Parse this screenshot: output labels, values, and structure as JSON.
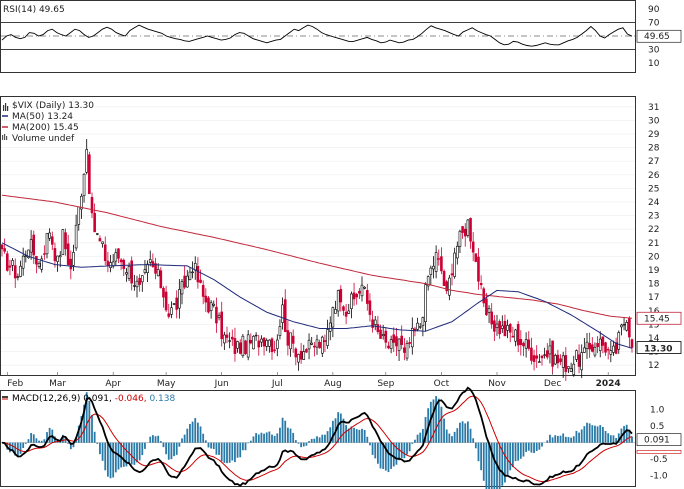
{
  "chart_data": [
    {
      "type": "line",
      "panel": "rsi",
      "title": "RSI(14) 49.65",
      "y_ticks": [
        90,
        70,
        50,
        30,
        10
      ],
      "ylim": [
        0,
        100
      ],
      "last_value_label": "49.65",
      "level_lines": [
        70,
        30
      ],
      "series": [
        {
          "name": "RSI(14)",
          "color": "#000000",
          "values": [
            44,
            50,
            52,
            48,
            46,
            48,
            55,
            54,
            50,
            52,
            58,
            60,
            55,
            52,
            50,
            55,
            60,
            58,
            52,
            48,
            50,
            55,
            60,
            63,
            60,
            55,
            52,
            50,
            58,
            62,
            66,
            63,
            60,
            58,
            56,
            54,
            50,
            48,
            46,
            45,
            43,
            42,
            44,
            46,
            48,
            50,
            48,
            46,
            44,
            45,
            47,
            52,
            55,
            54,
            50,
            46,
            44,
            42,
            40,
            42,
            44,
            45,
            50,
            55,
            60,
            58,
            62,
            66,
            64,
            60,
            55,
            52,
            50,
            48,
            46,
            44,
            42,
            42,
            44,
            46,
            48,
            45,
            43,
            40,
            41,
            44,
            42,
            40,
            41,
            44,
            45,
            49,
            54,
            60,
            65,
            62,
            60,
            58,
            55,
            52,
            50,
            56,
            59,
            62,
            58,
            55,
            52,
            50,
            45,
            40,
            37,
            38,
            42,
            41,
            38,
            36,
            35,
            36,
            38,
            40,
            38,
            37,
            37,
            40,
            43,
            45,
            48,
            53,
            58,
            64,
            58,
            50,
            47,
            52,
            56,
            60,
            62,
            53,
            49.65
          ]
        }
      ]
    },
    {
      "type": "candlestick",
      "panel": "price",
      "title": "$VIX (Daily) 13.30",
      "y_ticks": [
        31,
        30,
        29,
        28,
        27,
        26,
        25,
        24,
        23,
        22,
        21,
        20,
        19,
        18,
        17,
        16,
        15,
        14,
        13,
        12
      ],
      "y_tick_labels": [
        "31",
        "30",
        "29",
        "28",
        "27",
        "26",
        "25",
        "24",
        "23",
        "22",
        "21",
        "20",
        "19",
        "18",
        "17",
        "16",
        "15",
        "14",
        "13",
        "12"
      ],
      "ylim": [
        11.5,
        31.5
      ],
      "x_tick_labels": [
        "Feb",
        "Mar",
        "Apr",
        "May",
        "Jun",
        "Jul",
        "Aug",
        "Sep",
        "Oct",
        "Nov",
        "Dec",
        "2024"
      ],
      "x_tick_index": [
        2,
        21,
        42,
        62,
        83,
        104,
        125,
        145,
        166,
        187,
        208,
        229
      ],
      "last_labels": {
        "ma200": "15.45",
        "close": "13.30"
      },
      "colors": {
        "up": "#000000",
        "down": "#cc0033",
        "ma50": "#1f2a7a",
        "ma200": "#c0283a"
      },
      "legend": [
        {
          "label": "MA(50) 13.24",
          "color": "#1f2a7a"
        },
        {
          "label": "MA(200) 15.45",
          "color": "#c0283a"
        },
        {
          "label": "Volume undef",
          "color": "#555555"
        }
      ],
      "close_anchors": [
        [
          0,
          20
        ],
        [
          6,
          18.7
        ],
        [
          10,
          21
        ],
        [
          14,
          19.5
        ],
        [
          18,
          22
        ],
        [
          21,
          19.5
        ],
        [
          23,
          21.5
        ],
        [
          26,
          19
        ],
        [
          30,
          25
        ],
        [
          32,
          28
        ],
        [
          34,
          22.5
        ],
        [
          37,
          21
        ],
        [
          40,
          19.5
        ],
        [
          44,
          20
        ],
        [
          48,
          19
        ],
        [
          52,
          17.5
        ],
        [
          56,
          19.5
        ],
        [
          60,
          18
        ],
        [
          63,
          15.8
        ],
        [
          66,
          16.5
        ],
        [
          70,
          18.5
        ],
        [
          72,
          19.5
        ],
        [
          76,
          17
        ],
        [
          80,
          16
        ],
        [
          84,
          14
        ],
        [
          88,
          13.3
        ],
        [
          92,
          13.5
        ],
        [
          96,
          13.8
        ],
        [
          100,
          14.2
        ],
        [
          103,
          13.4
        ],
        [
          106,
          16.1
        ],
        [
          108,
          14
        ],
        [
          112,
          13
        ],
        [
          116,
          13.2
        ],
        [
          119,
          13.6
        ],
        [
          122,
          13.5
        ],
        [
          125,
          16.5
        ],
        [
          128,
          17.3
        ],
        [
          130,
          16.1
        ],
        [
          133,
          16.8
        ],
        [
          136,
          17.9
        ],
        [
          139,
          15.9
        ],
        [
          142,
          14.3
        ],
        [
          145,
          13.5
        ],
        [
          148,
          13.2
        ],
        [
          150,
          14
        ],
        [
          152,
          12.6
        ],
        [
          155,
          14.1
        ],
        [
          158,
          15
        ],
        [
          161,
          18.5
        ],
        [
          164,
          20
        ],
        [
          166,
          19
        ],
        [
          168,
          17
        ],
        [
          171,
          20.5
        ],
        [
          174,
          21.6
        ],
        [
          176,
          22.5
        ],
        [
          178,
          20.8
        ],
        [
          180,
          18.5
        ],
        [
          182,
          16
        ],
        [
          186,
          15
        ],
        [
          190,
          14.5
        ],
        [
          194,
          14.2
        ],
        [
          198,
          13.4
        ],
        [
          202,
          12.6
        ],
        [
          206,
          12.9
        ],
        [
          210,
          12.3
        ],
        [
          214,
          12.1
        ],
        [
          218,
          12.5
        ],
        [
          222,
          13.2
        ],
        [
          225,
          13.8
        ],
        [
          228,
          13.4
        ],
        [
          230,
          12.6
        ],
        [
          232,
          13.1
        ],
        [
          234,
          14.6
        ],
        [
          236,
          15.8
        ],
        [
          238,
          13.3
        ]
      ],
      "ma50": [
        [
          0,
          21
        ],
        [
          10,
          20
        ],
        [
          20,
          19.4
        ],
        [
          30,
          19.2
        ],
        [
          40,
          19.3
        ],
        [
          55,
          19.4
        ],
        [
          70,
          19.3
        ],
        [
          80,
          18.3
        ],
        [
          90,
          17
        ],
        [
          100,
          15.9
        ],
        [
          110,
          15.2
        ],
        [
          120,
          14.7
        ],
        [
          130,
          14.7
        ],
        [
          140,
          14.9
        ],
        [
          150,
          14.6
        ],
        [
          160,
          14.5
        ],
        [
          170,
          15.2
        ],
        [
          180,
          16.6
        ],
        [
          187,
          17.5
        ],
        [
          195,
          17.4
        ],
        [
          205,
          16.7
        ],
        [
          215,
          15.7
        ],
        [
          225,
          14.5
        ],
        [
          232,
          13.6
        ],
        [
          238,
          13.24
        ]
      ],
      "ma200": [
        [
          0,
          24.5
        ],
        [
          20,
          24
        ],
        [
          40,
          23.2
        ],
        [
          60,
          22.2
        ],
        [
          80,
          21.4
        ],
        [
          100,
          20.5
        ],
        [
          120,
          19.5
        ],
        [
          140,
          18.6
        ],
        [
          150,
          18.3
        ],
        [
          160,
          18
        ],
        [
          170,
          17.5
        ],
        [
          180,
          17.2
        ],
        [
          190,
          17
        ],
        [
          200,
          16.8
        ],
        [
          210,
          16.5
        ],
        [
          220,
          16
        ],
        [
          230,
          15.6
        ],
        [
          238,
          15.45
        ]
      ]
    },
    {
      "type": "bar",
      "panel": "macd",
      "title": "MACD(12,26,9) 0.091, -0.046, 0.138",
      "legend": [
        {
          "label": "MACD(12,26,9)",
          "color": "#000000"
        },
        {
          "label": "0.091,",
          "color": "#000000"
        },
        {
          "label": "-0.046,",
          "color": "#cc0000"
        },
        {
          "label": "0.138",
          "color": "#2a7aa8"
        }
      ],
      "y_ticks": [
        1.0,
        0.5,
        0.0,
        -0.5,
        -1.0
      ],
      "y_tick_labels": [
        "1.0",
        "0.5",
        "0.0",
        "-0.5",
        "-1.0"
      ],
      "ylim": [
        -1.25,
        1.5
      ],
      "last_labels": {
        "macd": "0.091",
        "signal": "-0.046"
      },
      "colors": {
        "macd": "#000000",
        "signal": "#cc0000",
        "hist": "#2a7aa8"
      }
    }
  ]
}
